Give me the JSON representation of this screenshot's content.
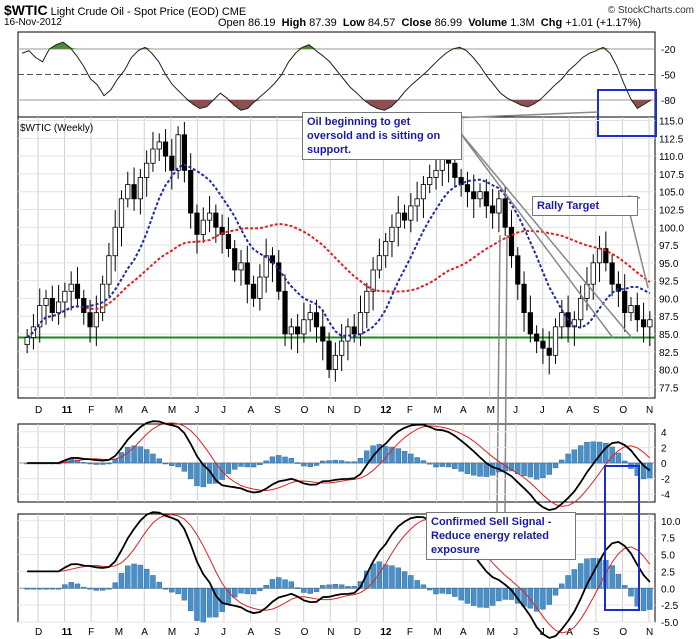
{
  "header": {
    "symbol": "$WTIC",
    "name": "Light Crude Oil - Spot Price (EOD)",
    "exchange": "CME",
    "date": "16-Nov-2012",
    "open_label": "Open",
    "open": "86.19",
    "high_label": "High",
    "high": "87.39",
    "low_label": "Low",
    "low": "84.57",
    "close_label": "Close",
    "close": "86.99",
    "volume_label": "Volume",
    "volume": "1.3M",
    "chg_label": "Chg",
    "chg": "+1.01 (+1.17%)",
    "brand": "© StockCharts.com"
  },
  "annotations": {
    "oversold": "Oil beginning to get oversold and is sitting on support.",
    "rally": "Rally Target",
    "sell": "Confirmed Sell Signal - Reduce energy related exposure"
  },
  "colors": {
    "up": "#ffffff",
    "down": "#000000",
    "ma_fast": "#1f2f9e",
    "ma_slow": "#e02020",
    "support": "#1a8a1a",
    "highlight": "#1a2fcc",
    "hist": "#4a90c8",
    "osc_pos": "#4f8a3a",
    "osc_neg": "#8a4f4f"
  },
  "chart_data": [
    {
      "type": "line",
      "panel": "top oscillator",
      "y_ticks": [
        "-20",
        "-50",
        "-80"
      ],
      "ylim": [
        -100,
        0
      ],
      "values": [
        -25,
        -22,
        -30,
        -35,
        -20,
        -15,
        -12,
        -18,
        -28,
        -40,
        -55,
        -62,
        -75,
        -68,
        -55,
        -45,
        -30,
        -22,
        -18,
        -25,
        -35,
        -50,
        -62,
        -70,
        -78,
        -85,
        -90,
        -88,
        -80,
        -72,
        -78,
        -86,
        -92,
        -90,
        -82,
        -75,
        -68,
        -60,
        -50,
        -35,
        -25,
        -18,
        -15,
        -22,
        -28,
        -35,
        -45,
        -55,
        -65,
        -72,
        -80,
        -86,
        -90,
        -92,
        -88,
        -80,
        -70,
        -62,
        -55,
        -48,
        -40,
        -32,
        -25,
        -20,
        -18,
        -22,
        -30,
        -40,
        -52,
        -62,
        -72,
        -78,
        -82,
        -86,
        -88,
        -84,
        -78,
        -70,
        -62,
        -55,
        -45,
        -38,
        -30,
        -25,
        -22,
        -18,
        -25,
        -40,
        -60,
        -78,
        -90,
        -85,
        -80
      ]
    },
    {
      "type": "candlestick",
      "panel": "price",
      "title": "$WTIC (Weekly)",
      "ylim": [
        76,
        115.5
      ],
      "y_ticks": [
        "77.5",
        "80.0",
        "82.5",
        "85.0",
        "87.5",
        "90.0",
        "92.5",
        "95.0",
        "97.5",
        "100.0",
        "102.5",
        "105.0",
        "107.5",
        "110.0",
        "112.5",
        "115.0"
      ],
      "x_ticks": [
        "D",
        "11",
        "F",
        "M",
        "A",
        "M",
        "J",
        "J",
        "A",
        "S",
        "O",
        "N",
        "D",
        "12",
        "F",
        "M",
        "A",
        "M",
        "J",
        "J",
        "A",
        "S",
        "O",
        "N"
      ],
      "close": [
        84.5,
        86,
        89,
        90,
        88,
        89.5,
        91,
        92,
        90,
        88,
        86,
        88,
        92,
        96,
        100,
        104,
        106,
        104,
        107,
        109,
        111,
        112,
        110,
        108,
        113,
        108,
        102,
        99,
        101,
        102,
        100,
        99,
        97,
        94,
        95,
        92,
        90,
        93,
        96,
        95,
        91,
        85,
        86,
        85,
        87,
        88,
        86,
        84,
        80,
        82,
        84,
        86,
        85,
        88,
        91,
        94,
        96,
        98,
        100,
        102,
        101,
        103,
        104,
        106,
        107,
        108,
        110,
        109,
        107,
        106,
        105,
        104,
        105,
        103,
        102,
        104,
        100,
        96,
        92,
        88,
        85,
        84,
        83,
        82,
        86,
        88,
        86,
        87,
        90,
        92,
        95,
        97,
        95,
        92,
        91,
        88,
        89,
        87,
        86,
        87
      ],
      "series": [
        {
          "name": "MA fast",
          "style": "dashed"
        },
        {
          "name": "MA slow",
          "style": "dashed"
        }
      ],
      "support_level": 84.5
    },
    {
      "type": "area",
      "panel": "MACD 1",
      "y_ticks": [
        "4",
        "2",
        "0",
        "-2",
        "-4"
      ],
      "ylim": [
        -5,
        5
      ]
    },
    {
      "type": "area",
      "panel": "MACD 2",
      "y_ticks": [
        "10.0",
        "7.5",
        "5.0",
        "2.5",
        "0.0",
        "-2.5",
        "-5.0"
      ],
      "ylim": [
        -5,
        11
      ]
    }
  ]
}
